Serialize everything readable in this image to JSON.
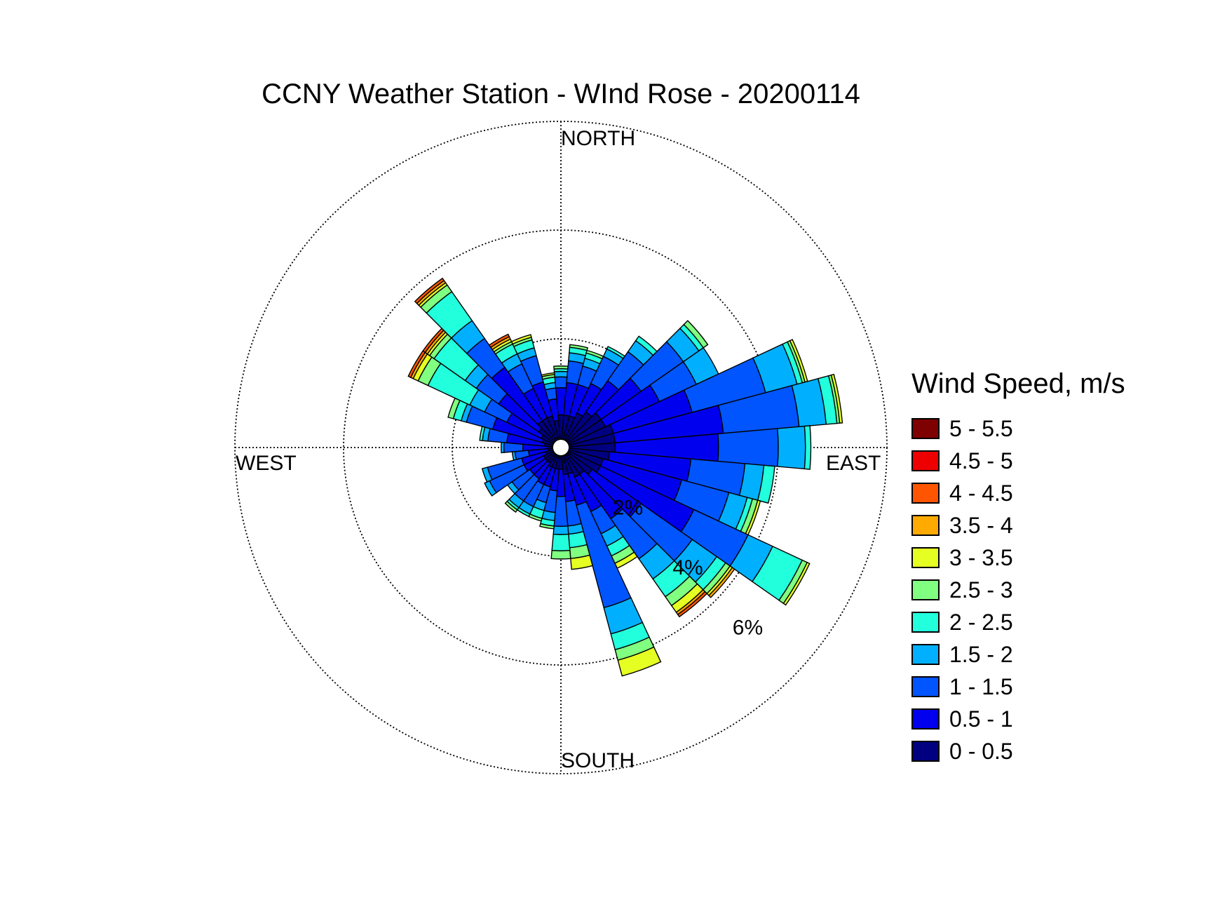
{
  "title": "CCNY Weather Station - WInd Rose - 20200114",
  "chart_data": {
    "type": "wind-rose",
    "title": "CCNY Weather Station - WInd Rose - 20200114",
    "direction_labels": {
      "north": "NORTH",
      "east": "EAST",
      "south": "SOUTH",
      "west": "WEST"
    },
    "radial_ticks": [
      {
        "value": 2,
        "label": "2%"
      },
      {
        "value": 4,
        "label": "4%"
      },
      {
        "value": 6,
        "label": "6%"
      }
    ],
    "rmax": 6,
    "grid": true,
    "legend_title": "Wind Speed, m/s",
    "legend_position": "right",
    "speed_bins": [
      {
        "label": "5 - 5.5",
        "color": "#7f0000"
      },
      {
        "label": "4.5 - 5",
        "color": "#ee0000"
      },
      {
        "label": "4 - 4.5",
        "color": "#ff5500"
      },
      {
        "label": "3.5 - 4",
        "color": "#ffaa00"
      },
      {
        "label": "3 - 3.5",
        "color": "#e6ff22"
      },
      {
        "label": "2.5 - 3",
        "color": "#80ff80"
      },
      {
        "label": "2 - 2.5",
        "color": "#22ffdd"
      },
      {
        "label": "1.5 - 2",
        "color": "#00b0ff"
      },
      {
        "label": "1 - 1.5",
        "color": "#0055ff"
      },
      {
        "label": "0.5 - 1",
        "color": "#0000ee"
      },
      {
        "label": "0 - 0.5",
        "color": "#000080"
      }
    ],
    "sector_width_deg": 10,
    "bins_order_note": "cumulative frequency (%) per direction from calm outward: 0-0.5, 0.5-1, 1-1.5, 1.5-2, 2-2.5, 2.5-3, 3-3.5, 3.5-4, 4-4.5, 4.5-5, 5-5.5",
    "sectors": [
      {
        "dir": 0,
        "cum": [
          0.6,
          1.1,
          1.3,
          1.4,
          1.45,
          1.5
        ]
      },
      {
        "dir": 10,
        "cum": [
          0.6,
          1.2,
          1.6,
          1.75,
          1.85,
          1.9
        ]
      },
      {
        "dir": 20,
        "cum": [
          0.6,
          1.2,
          1.55,
          1.7,
          1.8,
          1.85
        ]
      },
      {
        "dir": 30,
        "cum": [
          0.7,
          1.3,
          1.85,
          2.0,
          2.05
        ]
      },
      {
        "dir": 40,
        "cum": [
          0.8,
          1.5,
          2.15,
          2.4,
          2.5
        ]
      },
      {
        "dir": 50,
        "cum": [
          0.9,
          1.8,
          2.75,
          3.1,
          3.2,
          3.3
        ]
      },
      {
        "dir": 60,
        "cum": [
          0.9,
          2.0,
          2.75,
          3.2
        ]
      },
      {
        "dir": 70,
        "cum": [
          1.0,
          2.5,
          3.9,
          4.5,
          4.6,
          4.65,
          4.7
        ]
      },
      {
        "dir": 80,
        "cum": [
          1.0,
          3.0,
          4.4,
          4.9,
          5.1,
          5.15,
          5.2
        ]
      },
      {
        "dir": 90,
        "cum": [
          1.0,
          2.9,
          4.0,
          4.5,
          4.6
        ]
      },
      {
        "dir": 100,
        "cum": [
          0.9,
          2.4,
          3.4,
          3.75,
          3.95
        ]
      },
      {
        "dir": 110,
        "cum": [
          0.8,
          2.3,
          3.2,
          3.55,
          3.65,
          3.75,
          3.8
        ]
      },
      {
        "dir": 120,
        "cum": [
          0.8,
          2.7,
          3.8,
          4.3,
          4.9,
          5.0,
          5.05
        ]
      },
      {
        "dir": 130,
        "cum": [
          0.7,
          1.8,
          2.95,
          3.5,
          3.7,
          3.8,
          3.85,
          3.9
        ]
      },
      {
        "dir": 140,
        "cum": [
          0.6,
          1.6,
          2.5,
          2.95,
          3.35,
          3.55,
          3.7,
          3.75,
          3.8
        ]
      },
      {
        "dir": 150,
        "cum": [
          0.6,
          1.3,
          1.75,
          2.0,
          2.2,
          2.35,
          2.45
        ]
      },
      {
        "dir": 160,
        "cum": [
          0.5,
          1.1,
          3.05,
          3.55,
          3.85,
          4.05,
          4.35
        ]
      },
      {
        "dir": 170,
        "cum": [
          0.5,
          1.0,
          1.45,
          1.6,
          1.85,
          2.05,
          2.25
        ]
      },
      {
        "dir": 180,
        "cum": [
          0.4,
          0.9,
          1.45,
          1.6,
          1.9,
          2.05
        ]
      },
      {
        "dir": 190,
        "cum": [
          0.4,
          0.8,
          1.2,
          1.35,
          1.45,
          1.5
        ]
      },
      {
        "dir": 200,
        "cum": [
          0.4,
          0.75,
          1.05,
          1.2,
          1.35,
          1.4
        ]
      },
      {
        "dir": 210,
        "cum": [
          0.4,
          0.75,
          1.2,
          1.35,
          1.4
        ]
      },
      {
        "dir": 220,
        "cum": [
          0.35,
          0.7,
          1.2,
          1.35,
          1.4,
          1.45
        ]
      },
      {
        "dir": 230,
        "cum": [
          0.35,
          0.7,
          1.1,
          1.2
        ]
      },
      {
        "dir": 240,
        "cum": [
          0.35,
          0.75,
          1.45,
          1.55
        ]
      },
      {
        "dir": 250,
        "cum": [
          0.3,
          0.75,
          1.4,
          1.5
        ]
      },
      {
        "dir": 260,
        "cum": [
          0.25,
          0.6,
          0.85,
          0.9
        ]
      },
      {
        "dir": 270,
        "cum": [
          0.25,
          0.7,
          1.05,
          1.1
        ]
      },
      {
        "dir": 280,
        "cum": [
          0.3,
          1.0,
          1.35,
          1.45,
          1.5
        ]
      },
      {
        "dir": 290,
        "cum": [
          0.35,
          1.3,
          1.8,
          1.9,
          2.05,
          2.15
        ]
      },
      {
        "dir": 300,
        "cum": [
          0.4,
          1.1,
          1.55,
          1.85,
          2.7,
          2.9,
          3.0,
          3.05,
          3.1
        ]
      },
      {
        "dir": 310,
        "cum": [
          0.5,
          1.4,
          1.9,
          2.15,
          2.85,
          2.95,
          3.0,
          3.05,
          3.1
        ]
      },
      {
        "dir": 320,
        "cum": [
          0.6,
          1.8,
          2.45,
          2.85,
          3.5,
          3.65,
          3.7,
          3.75,
          3.8
        ]
      },
      {
        "dir": 330,
        "cum": [
          0.6,
          1.2,
          1.7,
          1.9,
          2.1,
          2.15,
          2.2,
          2.25,
          2.3
        ]
      },
      {
        "dir": 340,
        "cum": [
          0.6,
          1.25,
          1.75,
          1.9,
          2.05,
          2.1,
          2.15
        ]
      },
      {
        "dir": 350,
        "cum": [
          0.5,
          0.9,
          1.1,
          1.2,
          1.3,
          1.35,
          1.38
        ]
      }
    ]
  }
}
